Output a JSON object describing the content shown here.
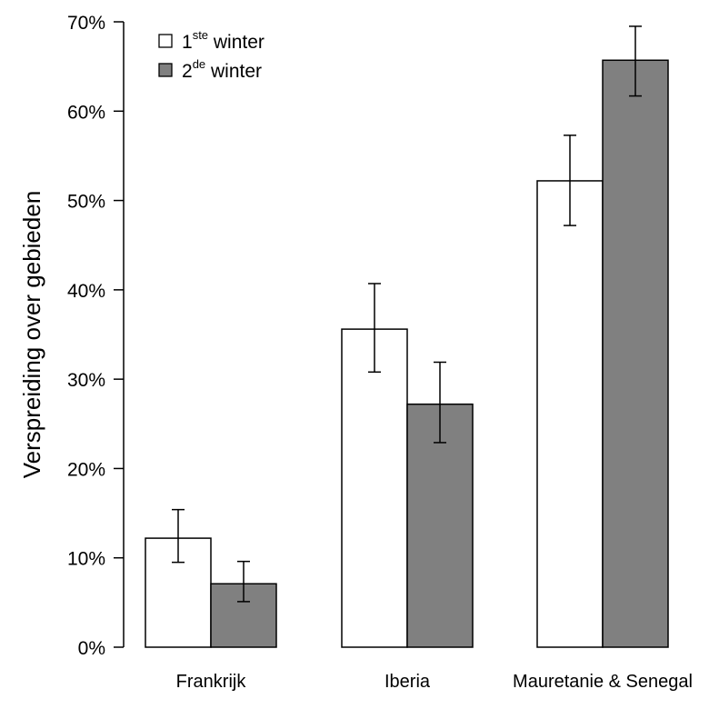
{
  "chart_data": {
    "type": "bar",
    "ylabel": "Verspreiding over gebieden",
    "xlabel": "",
    "title": "",
    "categories": [
      "Frankrijk",
      "Iberia",
      "Mauretanie & Senegal"
    ],
    "ylim": [
      0,
      70
    ],
    "yticks": [
      0,
      10,
      20,
      30,
      40,
      50,
      60,
      70
    ],
    "ytick_labels": [
      "0%",
      "10%",
      "20%",
      "30%",
      "40%",
      "50%",
      "60%",
      "70%"
    ],
    "legend_position": "top-left",
    "series": [
      {
        "name": "1ste winter",
        "legend_base": "1",
        "legend_sup": "ste",
        "legend_rest": " winter",
        "color": "#ffffff",
        "values": [
          12.2,
          35.6,
          52.2
        ],
        "err_low": [
          9.5,
          30.8,
          47.2
        ],
        "err_high": [
          15.4,
          40.7,
          57.3
        ]
      },
      {
        "name": "2de winter",
        "legend_base": "2",
        "legend_sup": "de",
        "legend_rest": " winter",
        "color": "#808080",
        "values": [
          7.1,
          27.2,
          65.7
        ],
        "err_low": [
          5.1,
          22.9,
          61.7
        ],
        "err_high": [
          9.6,
          31.9,
          69.5
        ]
      }
    ]
  }
}
